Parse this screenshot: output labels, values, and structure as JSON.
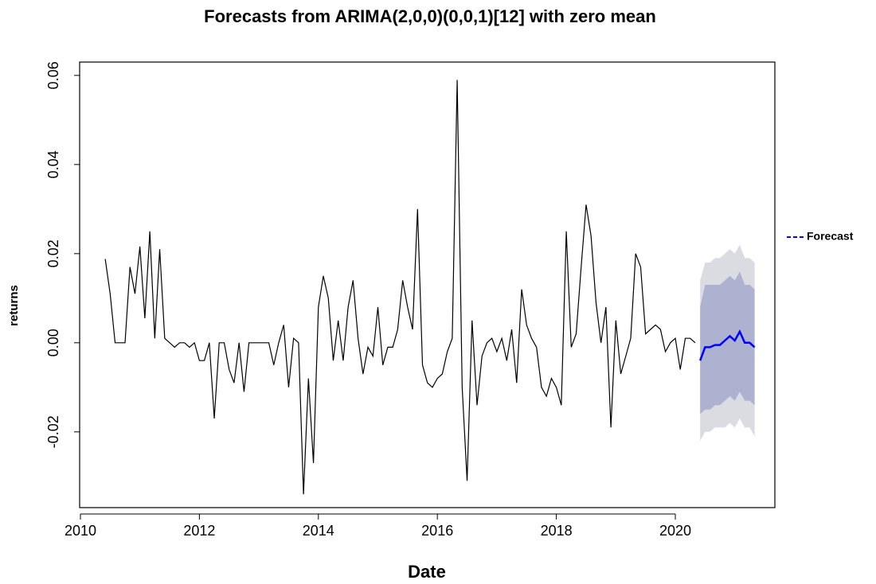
{
  "chart_data": {
    "type": "line",
    "title": "Forecasts from ARIMA(2,0,0)(0,0,1)[12] with zero mean",
    "x_label": "Date",
    "y_label": "returns",
    "xlim": [
      2009.987,
      2021.673
    ],
    "ylim": [
      -0.037,
      0.063
    ],
    "xticks": [
      2010,
      2012,
      2014,
      2016,
      2018,
      2020
    ],
    "yticks": [
      -0.02,
      {
        "value": 0,
        "label": "0.00"
      },
      0.02,
      0.04,
      0.06
    ],
    "legend": "right",
    "series": [
      {
        "color": "#000000",
        "x": [
          2010.417,
          2010.5,
          2010.583,
          2010.667,
          2010.75,
          2010.833,
          2010.917,
          2011,
          2011.083,
          2011.167,
          2011.25,
          2011.333,
          2011.417,
          2011.5,
          2011.583,
          2011.667,
          2011.75,
          2011.833,
          2011.917,
          2012,
          2012.083,
          2012.167,
          2012.25,
          2012.333,
          2012.417,
          2012.5,
          2012.583,
          2012.667,
          2012.75,
          2012.833,
          2012.917,
          2013,
          2013.083,
          2013.167,
          2013.25,
          2013.333,
          2013.417,
          2013.5,
          2013.583,
          2013.667,
          2013.75,
          2013.833,
          2013.917,
          2014,
          2014.083,
          2014.167,
          2014.25,
          2014.333,
          2014.417,
          2014.5,
          2014.583,
          2014.667,
          2014.75,
          2014.833,
          2014.917,
          2015,
          2015.083,
          2015.167,
          2015.25,
          2015.333,
          2015.417,
          2015.5,
          2015.583,
          2015.667,
          2015.75,
          2015.833,
          2015.917,
          2016,
          2016.083,
          2016.167,
          2016.25,
          2016.333,
          2016.417,
          2016.5,
          2016.583,
          2016.667,
          2016.75,
          2016.833,
          2016.917,
          2017,
          2017.083,
          2017.167,
          2017.25,
          2017.333,
          2017.417,
          2017.5,
          2017.583,
          2017.667,
          2017.75,
          2017.833,
          2017.917,
          2018,
          2018.083,
          2018.167,
          2018.25,
          2018.333,
          2018.417,
          2018.5,
          2018.583,
          2018.667,
          2018.75,
          2018.833,
          2018.917,
          2019,
          2019.083,
          2019.167,
          2019.25,
          2019.333,
          2019.417,
          2019.5,
          2019.583,
          2019.667,
          2019.75,
          2019.833,
          2019.917,
          2020,
          2020.083,
          2020.167,
          2020.25,
          2020.333
        ],
        "values": [
          0.0188,
          0.011,
          0,
          0,
          0,
          0.017,
          0.011,
          0.0216,
          0.0055,
          0.025,
          0.001,
          0.021,
          0.001,
          0,
          -0.001,
          0,
          0,
          -0.001,
          0,
          -0.004,
          -0.004,
          0,
          -0.017,
          0,
          0,
          -0.006,
          -0.009,
          0,
          -0.011,
          0,
          0,
          0,
          0,
          0,
          -0.005,
          0,
          0.004,
          -0.01,
          0.001,
          0,
          -0.034,
          -0.008,
          -0.027,
          0.008,
          0.015,
          0.01,
          -0.004,
          0.005,
          -0.004,
          0.008,
          0.014,
          0.001,
          -0.007,
          -0.001,
          -0.003,
          0.008,
          -0.005,
          -0.001,
          -0.001,
          0.003,
          0.014,
          0.008,
          0.003,
          0.03,
          -0.005,
          -0.009,
          -0.01,
          -0.008,
          -0.007,
          -0.002,
          0.001,
          0.059,
          -0.01,
          -0.031,
          0.005,
          -0.014,
          -0.003,
          0,
          0.001,
          -0.002,
          0.001,
          -0.004,
          0.003,
          -0.009,
          0.012,
          0.004,
          0.001,
          -0.001,
          -0.01,
          -0.012,
          -0.008,
          -0.01,
          -0.014,
          0.025,
          -0.001,
          0.002,
          0.017,
          0.031,
          0.024,
          0.009,
          0,
          0.008,
          -0.019,
          0.005,
          -0.007,
          -0.003,
          0.001,
          0.02,
          0.017,
          0.002,
          0.003,
          0.004,
          0.003,
          -0.002,
          0,
          0.001,
          -0.006,
          0.001,
          0.001,
          0
        ]
      },
      {
        "name": "Forecast",
        "color": "#0000ff",
        "x": [
          2020.417,
          2020.5,
          2020.583,
          2020.667,
          2020.75,
          2020.833,
          2020.917,
          2021,
          2021.083,
          2021.167,
          2021.25,
          2021.333
        ],
        "values": [
          -0.004,
          -0.001,
          -0.001,
          -0.0005,
          -0.0005,
          0.0005,
          0.0015,
          0.0005,
          0.0025,
          0,
          0,
          -0.001
        ],
        "bands": [
          {
            "color": "#dbdbe2",
            "lower": [
              -0.022,
              -0.02,
              -0.02,
              -0.019,
              -0.019,
              -0.019,
              -0.018,
              -0.019,
              -0.017,
              -0.019,
              -0.019,
              -0.021
            ],
            "upper": [
              0.014,
              0.018,
              0.018,
              0.019,
              0.019,
              0.02,
              0.021,
              0.02,
              0.022,
              0.019,
              0.019,
              0.018
            ]
          },
          {
            "color": "#adb2d1",
            "lower": [
              -0.016,
              -0.015,
              -0.015,
              -0.014,
              -0.014,
              -0.013,
              -0.012,
              -0.013,
              -0.011,
              -0.013,
              -0.013,
              -0.014
            ],
            "upper": [
              0.008,
              0.013,
              0.013,
              0.013,
              0.013,
              0.014,
              0.015,
              0.014,
              0.016,
              0.013,
              0.013,
              0.012
            ]
          }
        ]
      }
    ]
  }
}
